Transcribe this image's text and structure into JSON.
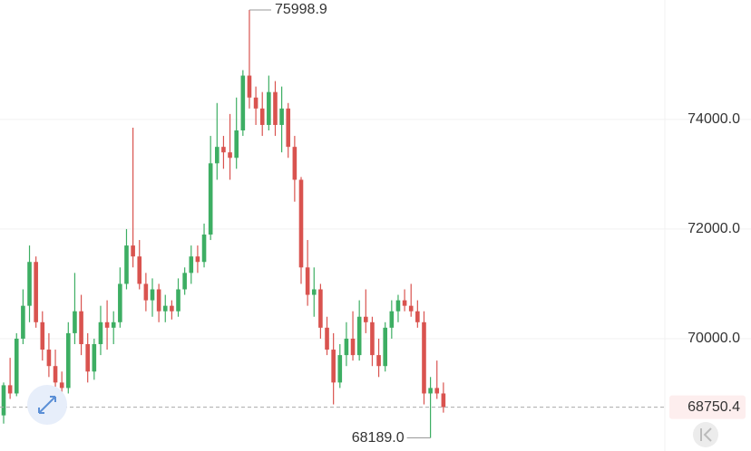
{
  "chart_data": {
    "type": "candlestick",
    "ylim": [
      67950,
      76180
    ],
    "yticks": [
      {
        "value": 70000,
        "label": "70000.0"
      },
      {
        "value": 72000,
        "label": "72000.0"
      },
      {
        "value": 74000,
        "label": "74000.0"
      }
    ],
    "grid": true,
    "up_color": "#3dae63",
    "down_color": "#d9534f",
    "candles": [
      [
        68600,
        69200,
        68450,
        69150
      ],
      [
        69150,
        69650,
        68900,
        69000
      ],
      [
        69000,
        70100,
        68950,
        70000
      ],
      [
        70000,
        70900,
        69900,
        70600
      ],
      [
        70600,
        71700,
        70300,
        71400
      ],
      [
        71400,
        71500,
        70200,
        70300
      ],
      [
        70300,
        70500,
        69600,
        69800
      ],
      [
        69800,
        70100,
        69300,
        69500
      ],
      [
        69500,
        69800,
        69000,
        69200
      ],
      [
        69200,
        69400,
        68950,
        69100
      ],
      [
        69100,
        70300,
        69000,
        70100
      ],
      [
        70100,
        71200,
        69900,
        70500
      ],
      [
        70500,
        70800,
        69700,
        69900
      ],
      [
        69900,
        70100,
        69200,
        69400
      ],
      [
        69400,
        70000,
        69250,
        69900
      ],
      [
        69900,
        70600,
        69700,
        70300
      ],
      [
        70300,
        70700,
        69800,
        70200
      ],
      [
        70200,
        70500,
        69900,
        70300
      ],
      [
        70300,
        71300,
        70200,
        71000
      ],
      [
        71000,
        72000,
        70900,
        71700
      ],
      [
        71700,
        73850,
        71300,
        71500
      ],
      [
        71500,
        71800,
        70900,
        71000
      ],
      [
        71000,
        71200,
        70500,
        70700
      ],
      [
        70700,
        71100,
        70400,
        70900
      ],
      [
        70900,
        71000,
        70300,
        70500
      ],
      [
        70500,
        70800,
        70300,
        70600
      ],
      [
        70600,
        70700,
        70350,
        70500
      ],
      [
        70500,
        71100,
        70400,
        70900
      ],
      [
        70900,
        71300,
        70800,
        71200
      ],
      [
        71200,
        71700,
        71000,
        71500
      ],
      [
        71500,
        71700,
        71200,
        71400
      ],
      [
        71400,
        72100,
        71300,
        71900
      ],
      [
        71900,
        73700,
        71800,
        73200
      ],
      [
        73200,
        74300,
        72900,
        73500
      ],
      [
        73500,
        73700,
        73100,
        73400
      ],
      [
        73400,
        74100,
        72900,
        73300
      ],
      [
        73300,
        74400,
        73100,
        73800
      ],
      [
        73800,
        74900,
        73700,
        74800
      ],
      [
        74800,
        75998.9,
        74200,
        74400
      ],
      [
        74400,
        74600,
        73900,
        74200
      ],
      [
        74200,
        74500,
        73700,
        73900
      ],
      [
        73900,
        74800,
        73800,
        74500
      ],
      [
        74500,
        74700,
        73700,
        73900
      ],
      [
        73900,
        74600,
        73400,
        74200
      ],
      [
        74200,
        74300,
        73300,
        73500
      ],
      [
        73500,
        73700,
        72500,
        72900
      ],
      [
        72900,
        72950,
        71000,
        71300
      ],
      [
        71300,
        71800,
        70600,
        70800
      ],
      [
        70800,
        71300,
        70400,
        70900
      ],
      [
        70900,
        71000,
        70000,
        70200
      ],
      [
        70200,
        70400,
        69700,
        69800
      ],
      [
        69800,
        70100,
        68800,
        69200
      ],
      [
        69200,
        69900,
        69100,
        69700
      ],
      [
        69700,
        70300,
        69500,
        70000
      ],
      [
        70000,
        70500,
        69600,
        69700
      ],
      [
        69700,
        70700,
        69600,
        70400
      ],
      [
        70400,
        70900,
        70100,
        70300
      ],
      [
        70300,
        70400,
        69500,
        69700
      ],
      [
        69700,
        70000,
        69300,
        69500
      ],
      [
        69500,
        70300,
        69400,
        70200
      ],
      [
        70200,
        70700,
        70000,
        70500
      ],
      [
        70500,
        70800,
        70300,
        70700
      ],
      [
        70700,
        70900,
        70500,
        70600
      ],
      [
        70600,
        71000,
        70400,
        70500
      ],
      [
        70500,
        70700,
        70200,
        70300
      ],
      [
        70300,
        70500,
        68800,
        69000
      ],
      [
        69000,
        69300,
        68189,
        69100
      ],
      [
        69100,
        69600,
        68900,
        69000
      ],
      [
        69000,
        69200,
        68650,
        68750.4
      ]
    ],
    "max_label": 75998.9,
    "min_label": {
      "value": 68189,
      "label": "68189.0"
    },
    "last_price": 68750.4
  }
}
